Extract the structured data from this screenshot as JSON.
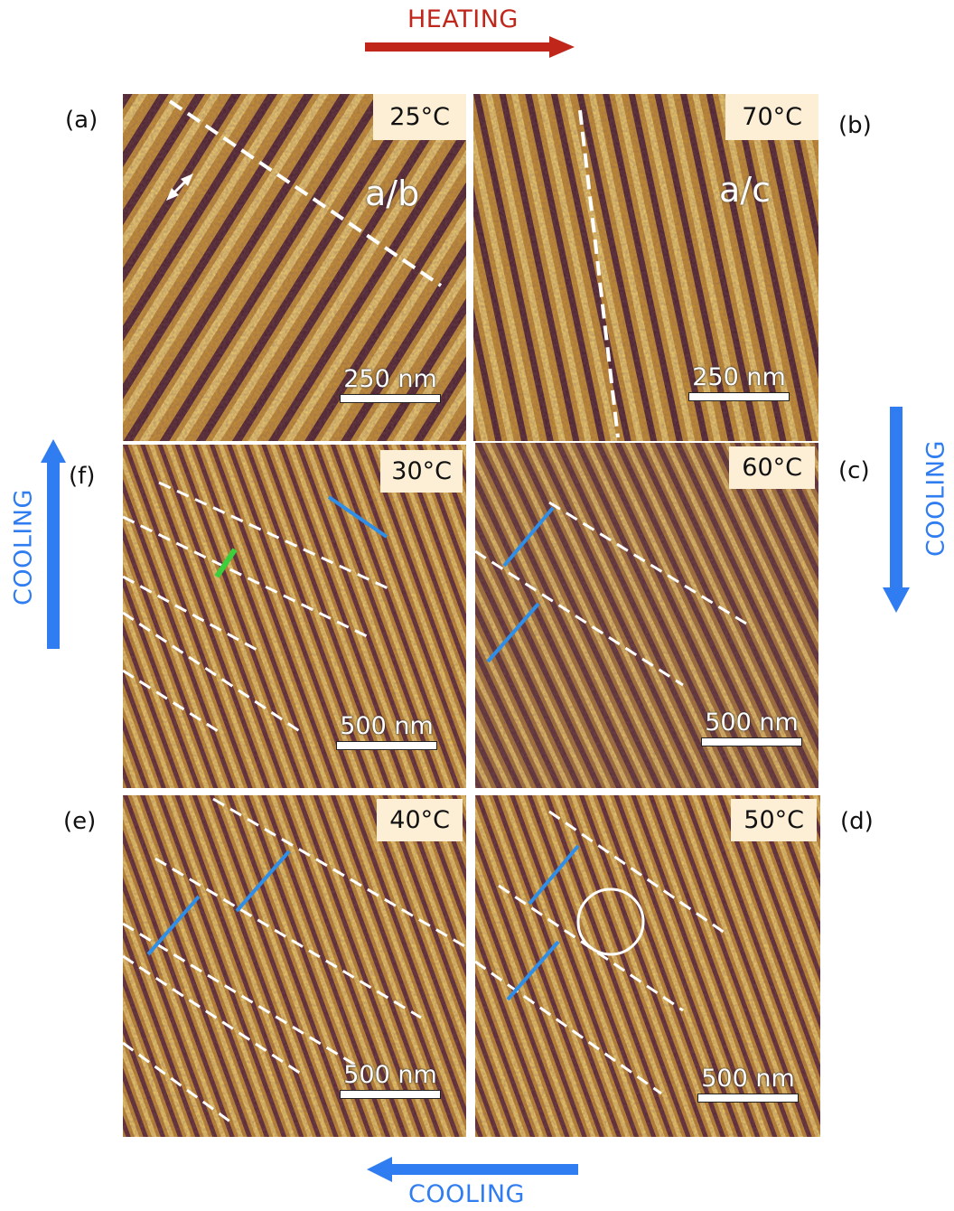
{
  "arrows": {
    "heating_label": "HEATING",
    "cooling_bottom_label": "COOLING",
    "cooling_left_label": "COOLING",
    "cooling_right_label": "COOLING"
  },
  "colors": {
    "heating": "#c0261a",
    "cooling": "#2f7df0",
    "afm_dark": "#3a1a2e",
    "afm_light": "#e8b848",
    "double_arrow_blue": "#2f8fe8",
    "double_arrow_green": "#3ccf3c"
  },
  "panels": {
    "a": {
      "letter": "(a)",
      "temp": "25°C",
      "scale": "250 nm",
      "domain": "a/b",
      "icon": "white-double-arrow-icon"
    },
    "b": {
      "letter": "(b)",
      "temp": "70°C",
      "scale": "250 nm",
      "domain": "a/c"
    },
    "c": {
      "letter": "(c)",
      "temp": "60°C",
      "scale": "500 nm"
    },
    "d": {
      "letter": "(d)",
      "temp": "50°C",
      "scale": "500 nm",
      "icon": "circle-marker-icon"
    },
    "e": {
      "letter": "(e)",
      "temp": "40°C",
      "scale": "500 nm"
    },
    "f": {
      "letter": "(f)",
      "temp": "30°C",
      "scale": "500 nm"
    }
  }
}
